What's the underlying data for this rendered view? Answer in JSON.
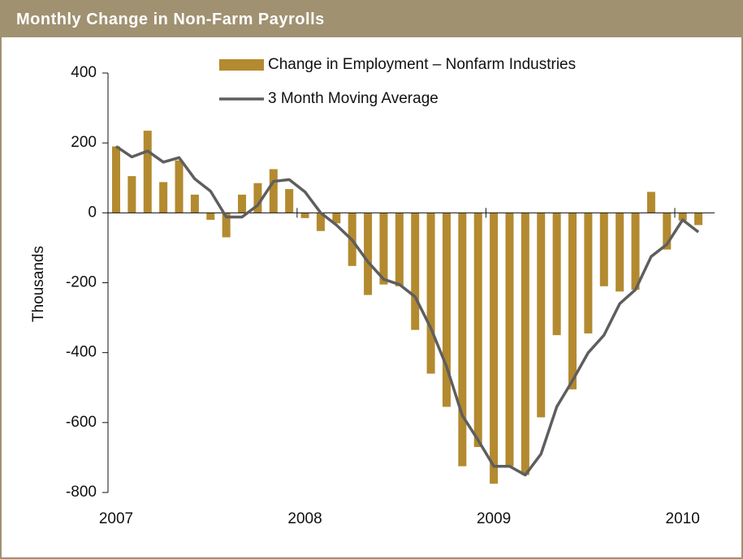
{
  "chart_data": {
    "type": "bar",
    "title": "Monthly Change in Non-Farm Payrolls",
    "ylabel": "Thousands",
    "categories": [
      "2007",
      null,
      null,
      null,
      null,
      null,
      null,
      null,
      null,
      null,
      null,
      null,
      "2008",
      null,
      null,
      null,
      null,
      null,
      null,
      null,
      null,
      null,
      null,
      null,
      "2009",
      null,
      null,
      null,
      null,
      null,
      null,
      null,
      null,
      null,
      null,
      null,
      "2010",
      null
    ],
    "series": [
      {
        "name": "Change in Employment – Nonfarm Industries",
        "type": "bar",
        "color": "#b38a2f",
        "values": [
          190,
          105,
          235,
          88,
          150,
          52,
          -20,
          -70,
          52,
          85,
          125,
          68,
          -15,
          -52,
          -30,
          -152,
          -235,
          -205,
          -210,
          -335,
          -460,
          -555,
          -725,
          -670,
          -775,
          -725,
          -750,
          -585,
          -350,
          -505,
          -345,
          -210,
          -225,
          -220,
          60,
          -105,
          -22,
          -35
        ]
      },
      {
        "name": "3 Month Moving Average",
        "type": "line",
        "color": "#5e5e5e",
        "values": [
          190,
          160,
          177,
          145,
          158,
          97,
          62,
          -12,
          -12,
          22,
          90,
          95,
          60,
          0,
          -35,
          -78,
          -140,
          -190,
          -205,
          -240,
          -330,
          -440,
          -580,
          -650,
          -725,
          -725,
          -750,
          -690,
          -555,
          -480,
          -400,
          -350,
          -260,
          -220,
          -125,
          -90,
          -20,
          -55
        ]
      }
    ],
    "ylim": [
      -800,
      400
    ],
    "yticks": [
      -800,
      -600,
      -400,
      -200,
      0,
      200,
      400
    ],
    "grid": false
  }
}
